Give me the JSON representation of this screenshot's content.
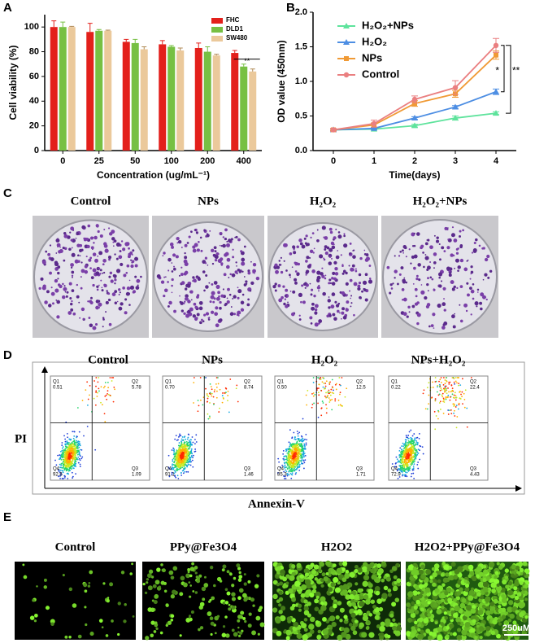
{
  "chart_data": [
    {
      "type": "bar",
      "ylabel": "Cell viability (%)",
      "xlabel": "Concentration (ug/mL⁻¹)",
      "categories": [
        "0",
        "25",
        "50",
        "100",
        "200",
        "400"
      ],
      "series": [
        {
          "name": "FHC",
          "color": "#e3201b",
          "values": [
            100,
            96,
            88,
            86,
            83,
            79
          ],
          "errors": [
            5,
            7,
            2,
            3,
            4,
            2
          ]
        },
        {
          "name": "DLD1",
          "color": "#77c043",
          "values": [
            100,
            97,
            87,
            84,
            80,
            68
          ],
          "errors": [
            4,
            1,
            3,
            1,
            4,
            2
          ]
        },
        {
          "name": "SW480",
          "color": "#ebc99b",
          "values": [
            100,
            97,
            82,
            81,
            77,
            64
          ],
          "errors": [
            0.5,
            0.5,
            2,
            2,
            1,
            2
          ]
        }
      ],
      "ylim": [
        0,
        110
      ],
      "yticks": [
        0,
        20,
        40,
        60,
        80,
        100
      ],
      "annotations": [
        "**"
      ]
    },
    {
      "type": "line",
      "ylabel": "OD value (450nm)",
      "xlabel": "Time(days)",
      "x": [
        0,
        1,
        2,
        3,
        4
      ],
      "series": [
        {
          "name": "H₂O₂+NPs",
          "color": "#5ee39c",
          "values": [
            0.3,
            0.31,
            0.36,
            0.47,
            0.54
          ],
          "errors": [
            0.01,
            0.01,
            0.02,
            0.03,
            0.02
          ]
        },
        {
          "name": "H₂O₂",
          "color": "#4d8ee3",
          "values": [
            0.3,
            0.32,
            0.47,
            0.63,
            0.85
          ],
          "errors": [
            0.01,
            0.01,
            0.02,
            0.02,
            0.04
          ]
        },
        {
          "name": "NPs",
          "color": "#f09a35",
          "values": [
            0.3,
            0.37,
            0.68,
            0.82,
            1.38
          ],
          "errors": [
            0.01,
            0.03,
            0.04,
            0.05,
            0.06
          ]
        },
        {
          "name": "Control",
          "color": "#ea7f80",
          "values": [
            0.3,
            0.39,
            0.74,
            0.91,
            1.52
          ],
          "errors": [
            0.02,
            0.05,
            0.05,
            0.1,
            0.1
          ]
        }
      ],
      "xlim": [
        -0.5,
        4.5
      ],
      "xticks": [
        0,
        1,
        2,
        3,
        4
      ],
      "ylim": [
        0,
        2
      ],
      "yticks": [
        {
          "value": 0,
          "label": "0.0"
        },
        0.5,
        {
          "value": 1,
          "label": "1.0"
        },
        1.5,
        {
          "value": 2,
          "label": "2.0"
        }
      ],
      "annotations": [
        "*",
        "**"
      ]
    }
  ],
  "panel_labels": [
    "A",
    "B",
    "C",
    "D",
    "E"
  ],
  "colony": {
    "titles": [
      "Control",
      "NPs",
      "H₂O₂",
      "H₂O₂+NPs"
    ]
  },
  "flow": {
    "titles": [
      "Control",
      "NPs",
      "H₂O₂",
      "NPs+H₂O₂"
    ],
    "ylabel": "PI",
    "xlabel": "Annexin-V",
    "quadrant_names": [
      "Q1",
      "Q2",
      "Q3",
      "Q4"
    ],
    "quadrants": [
      [
        "0.51",
        "5.78",
        "1.09",
        "92.6"
      ],
      [
        "0.70",
        "8.74",
        "1.46",
        "91.1"
      ],
      [
        "0.50",
        "12.5",
        "1.71",
        "85.3"
      ],
      [
        "0.22",
        "22.4",
        "4.43",
        "72.9"
      ]
    ]
  },
  "fluorescence": {
    "titles": [
      "Control",
      "PPy@Fe3O4",
      "H2O2",
      "H2O2+PPy@Fe3O4"
    ],
    "scale_bar": "250uM"
  }
}
